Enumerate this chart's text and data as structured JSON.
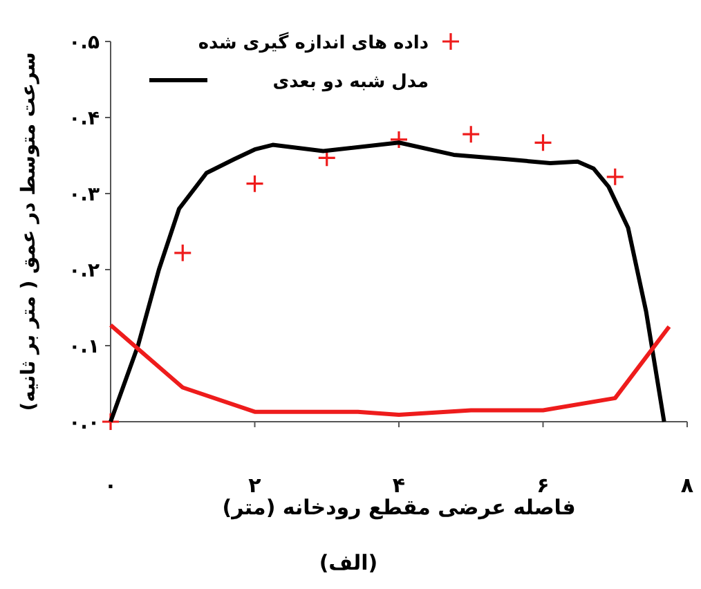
{
  "chart_data": {
    "type": "line",
    "xlabel": "فاصله عرضی مقطع رودخانه (متر)",
    "ylabel": "سرعت متوسط در عمق ( متر بر ثانیه)",
    "annotations": [
      "(الف)"
    ],
    "xlim": [
      0,
      8
    ],
    "ylim": [
      0,
      0.5
    ],
    "xticks": [
      {
        "value": 0,
        "label": "۰"
      },
      {
        "value": 2,
        "label": "۲"
      },
      {
        "value": 4,
        "label": "۴"
      },
      {
        "value": 6,
        "label": "۶"
      },
      {
        "value": 8,
        "label": "۸"
      }
    ],
    "yticks": [
      {
        "value": 0,
        "label": "۰.۰"
      },
      {
        "value": 0.1,
        "label": "۰.۱"
      },
      {
        "value": 0.2,
        "label": "۰.۲"
      },
      {
        "value": 0.3,
        "label": "۰.۳"
      },
      {
        "value": 0.4,
        "label": "۰.۴"
      },
      {
        "value": 0.5,
        "label": "۰.۵"
      }
    ],
    "legend": "top left",
    "grid": false,
    "series": [
      {
        "name": "داده های اندازه گیری شده",
        "type": "scatter",
        "marker": "cross",
        "color": "#ee1c1c",
        "x": [
          0,
          1,
          2,
          3,
          4,
          5,
          6,
          7
        ],
        "values": [
          0,
          0.222,
          0.313,
          0.347,
          0.371,
          0.378,
          0.367,
          0.322
        ]
      },
      {
        "name": "مدل شبه دو بعدی",
        "color": "#000000",
        "x": [
          0,
          0.38,
          0.67,
          0.95,
          1.33,
          1.71,
          2,
          2.25,
          2.95,
          4,
          4.76,
          5.52,
          6.1,
          6.48,
          6.7,
          6.91,
          7.18,
          7.43,
          7.68
        ],
        "values": [
          0,
          0.1,
          0.2,
          0.28,
          0.327,
          0.345,
          0.358,
          0.364,
          0.356,
          0.367,
          0.351,
          0.345,
          0.34,
          0.342,
          0.333,
          0.309,
          0.255,
          0.145,
          0
        ]
      },
      {
        "color": "#ee1c1c",
        "x": [
          0,
          1,
          2,
          3.43,
          4,
          5,
          6,
          7,
          7.75
        ],
        "values": [
          0.127,
          0.045,
          0.013,
          0.013,
          0.009,
          0.015,
          0.015,
          0.031,
          0.125
        ]
      }
    ]
  }
}
